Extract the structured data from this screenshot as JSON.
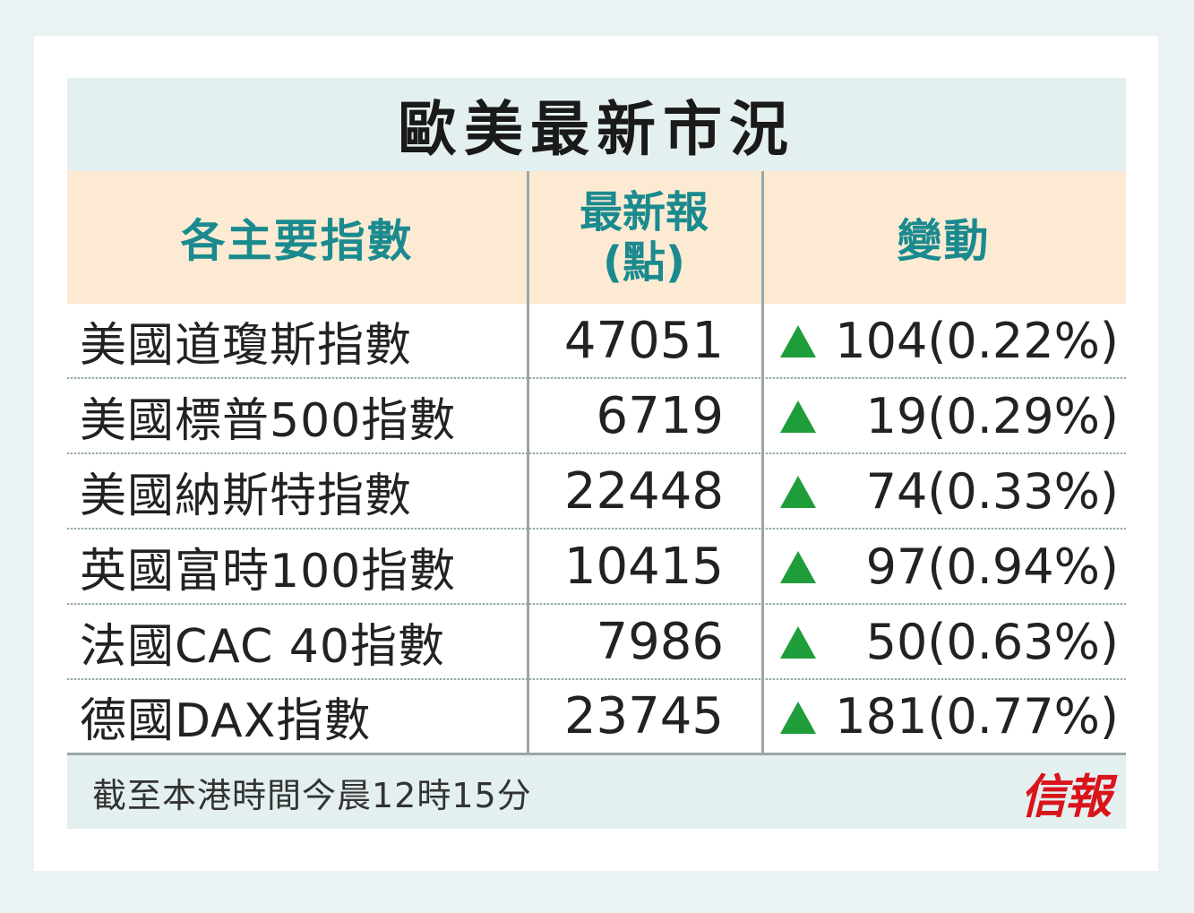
{
  "title": "歐美最新市況",
  "header": {
    "col1": "各主要指數",
    "col2_line1": "最新報",
    "col2_line2": "(點)",
    "col3": "變動"
  },
  "rows": [
    {
      "name": "美國道瓊斯指數",
      "value": "47051",
      "change": "104(0.22%)",
      "direction": "up"
    },
    {
      "name": "美國標普500指數",
      "value": "6719",
      "change": "19(0.29%)",
      "direction": "up"
    },
    {
      "name": "美國納斯特指數",
      "value": "22448",
      "change": "74(0.33%)",
      "direction": "up"
    },
    {
      "name": "英國富時100指數",
      "value": "10415",
      "change": "97(0.94%)",
      "direction": "up"
    },
    {
      "name": "法國CAC 40指數",
      "value": "7986",
      "change": "50(0.63%)",
      "direction": "up"
    },
    {
      "name": "德國DAX指數",
      "value": "23745",
      "change": "181(0.77%)",
      "direction": "up"
    }
  ],
  "footer_note": "截至本港時間今晨12時15分",
  "brand": "信報",
  "colors": {
    "accent_header_text": "#1b8a8f",
    "header_bg": "#fcebd2",
    "up_arrow": "#1f9d3a",
    "brand": "#d9141b"
  },
  "icons": {
    "up": "up-triangle-icon"
  }
}
